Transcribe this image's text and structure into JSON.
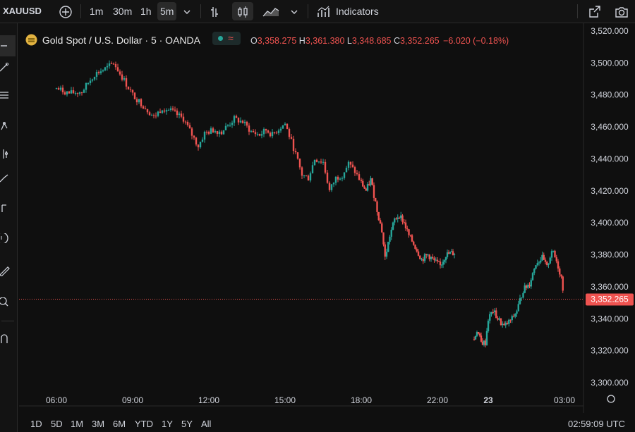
{
  "toolbar": {
    "symbol": "XAUUSD",
    "intervals": [
      "1m",
      "30m",
      "1h",
      "5m"
    ],
    "active_interval": "5m",
    "indicators_label": "Indicators"
  },
  "legend": {
    "title": "Gold Spot / U.S. Dollar · 5 · OANDA",
    "o_label": "O",
    "o": "3,358.275",
    "h_label": "H",
    "h": "3,361.380",
    "l_label": "L",
    "l": "3,348.685",
    "c_label": "C",
    "c": "3,352.265",
    "change": "−6.020 (−0.18%)"
  },
  "price_axis": {
    "labels": [
      "3,520.000",
      "3,500.000",
      "3,480.000",
      "3,460.000",
      "3,440.000",
      "3,420.000",
      "3,400.000",
      "3,380.000",
      "3,360.000",
      "3,340.000",
      "3,320.000",
      "3,300.000"
    ],
    "current_price_label": "3,352.265"
  },
  "time_axis": {
    "labels": [
      "06:00",
      "09:00",
      "12:00",
      "15:00",
      "18:00",
      "22:00",
      "23",
      "03:00"
    ]
  },
  "bottom": {
    "ranges": [
      "1D",
      "5D",
      "1M",
      "3M",
      "6M",
      "YTD",
      "1Y",
      "5Y",
      "All"
    ],
    "clock": "02:59:09 UTC"
  },
  "colors": {
    "up": "#26a69a",
    "down": "#ef5350",
    "background": "#0f0f0f"
  },
  "chart_data": {
    "type": "candlestick",
    "title": "Gold Spot / U.S. Dollar · 5 · OANDA",
    "ylim": [
      3300,
      3520
    ],
    "x_ticks": [
      "06:00",
      "09:00",
      "12:00",
      "15:00",
      "18:00",
      "22:00",
      "23",
      "03:00"
    ],
    "close_path": [
      [
        "04:00",
        3484
      ],
      [
        "04:30",
        3481
      ],
      [
        "05:00",
        3482
      ],
      [
        "05:30",
        3493
      ],
      [
        "06:00",
        3497
      ],
      [
        "06:15",
        3500
      ],
      [
        "06:40",
        3489
      ],
      [
        "07:00",
        3480
      ],
      [
        "07:30",
        3472
      ],
      [
        "07:50",
        3466
      ],
      [
        "08:10",
        3472
      ],
      [
        "08:30",
        3470
      ],
      [
        "09:00",
        3465
      ],
      [
        "09:20",
        3455
      ],
      [
        "09:35",
        3448
      ],
      [
        "09:50",
        3456
      ],
      [
        "10:10",
        3458
      ],
      [
        "10:30",
        3457
      ],
      [
        "11:00",
        3465
      ],
      [
        "11:20",
        3463
      ],
      [
        "11:40",
        3457
      ],
      [
        "12:00",
        3455
      ],
      [
        "12:15",
        3458
      ],
      [
        "12:30",
        3455
      ],
      [
        "12:50",
        3460
      ],
      [
        "13:00",
        3462
      ],
      [
        "13:20",
        3447
      ],
      [
        "13:40",
        3430
      ],
      [
        "13:55",
        3428
      ],
      [
        "14:10",
        3440
      ],
      [
        "14:30",
        3438
      ],
      [
        "14:45",
        3420
      ],
      [
        "15:00",
        3428
      ],
      [
        "15:15",
        3430
      ],
      [
        "15:30",
        3437
      ],
      [
        "15:45",
        3432
      ],
      [
        "16:00",
        3425
      ],
      [
        "16:15",
        3420
      ],
      [
        "16:30",
        3427
      ],
      [
        "16:50",
        3408
      ],
      [
        "17:05",
        3395
      ],
      [
        "17:15",
        3378
      ],
      [
        "17:30",
        3392
      ],
      [
        "17:45",
        3402
      ],
      [
        "18:00",
        3405
      ],
      [
        "18:15",
        3400
      ],
      [
        "18:30",
        3392
      ],
      [
        "18:50",
        3385
      ],
      [
        "19:10",
        3377
      ],
      [
        "19:30",
        3380
      ],
      [
        "19:50",
        3376
      ],
      [
        "20:10",
        3373
      ],
      [
        "20:30",
        3380
      ],
      [
        "20:50",
        3381
      ],
      [
        "21:05",
        3381
      ],
      [
        "22:10",
        3327
      ],
      [
        "22:20",
        3333
      ],
      [
        "22:35",
        3325
      ],
      [
        "22:50",
        3325
      ],
      [
        "23:00",
        3340
      ],
      [
        "23:15",
        3345
      ],
      [
        "23:30",
        3340
      ],
      [
        "23:50",
        3335
      ],
      [
        "00:15",
        3340
      ],
      [
        "00:30",
        3345
      ],
      [
        "00:50",
        3358
      ],
      [
        "01:10",
        3362
      ],
      [
        "01:30",
        3375
      ],
      [
        "01:50",
        3378
      ],
      [
        "02:05",
        3372
      ],
      [
        "02:20",
        3383
      ],
      [
        "02:35",
        3376
      ],
      [
        "02:50",
        3366
      ],
      [
        "03:00",
        3352
      ]
    ],
    "current_price": 3352.265
  }
}
